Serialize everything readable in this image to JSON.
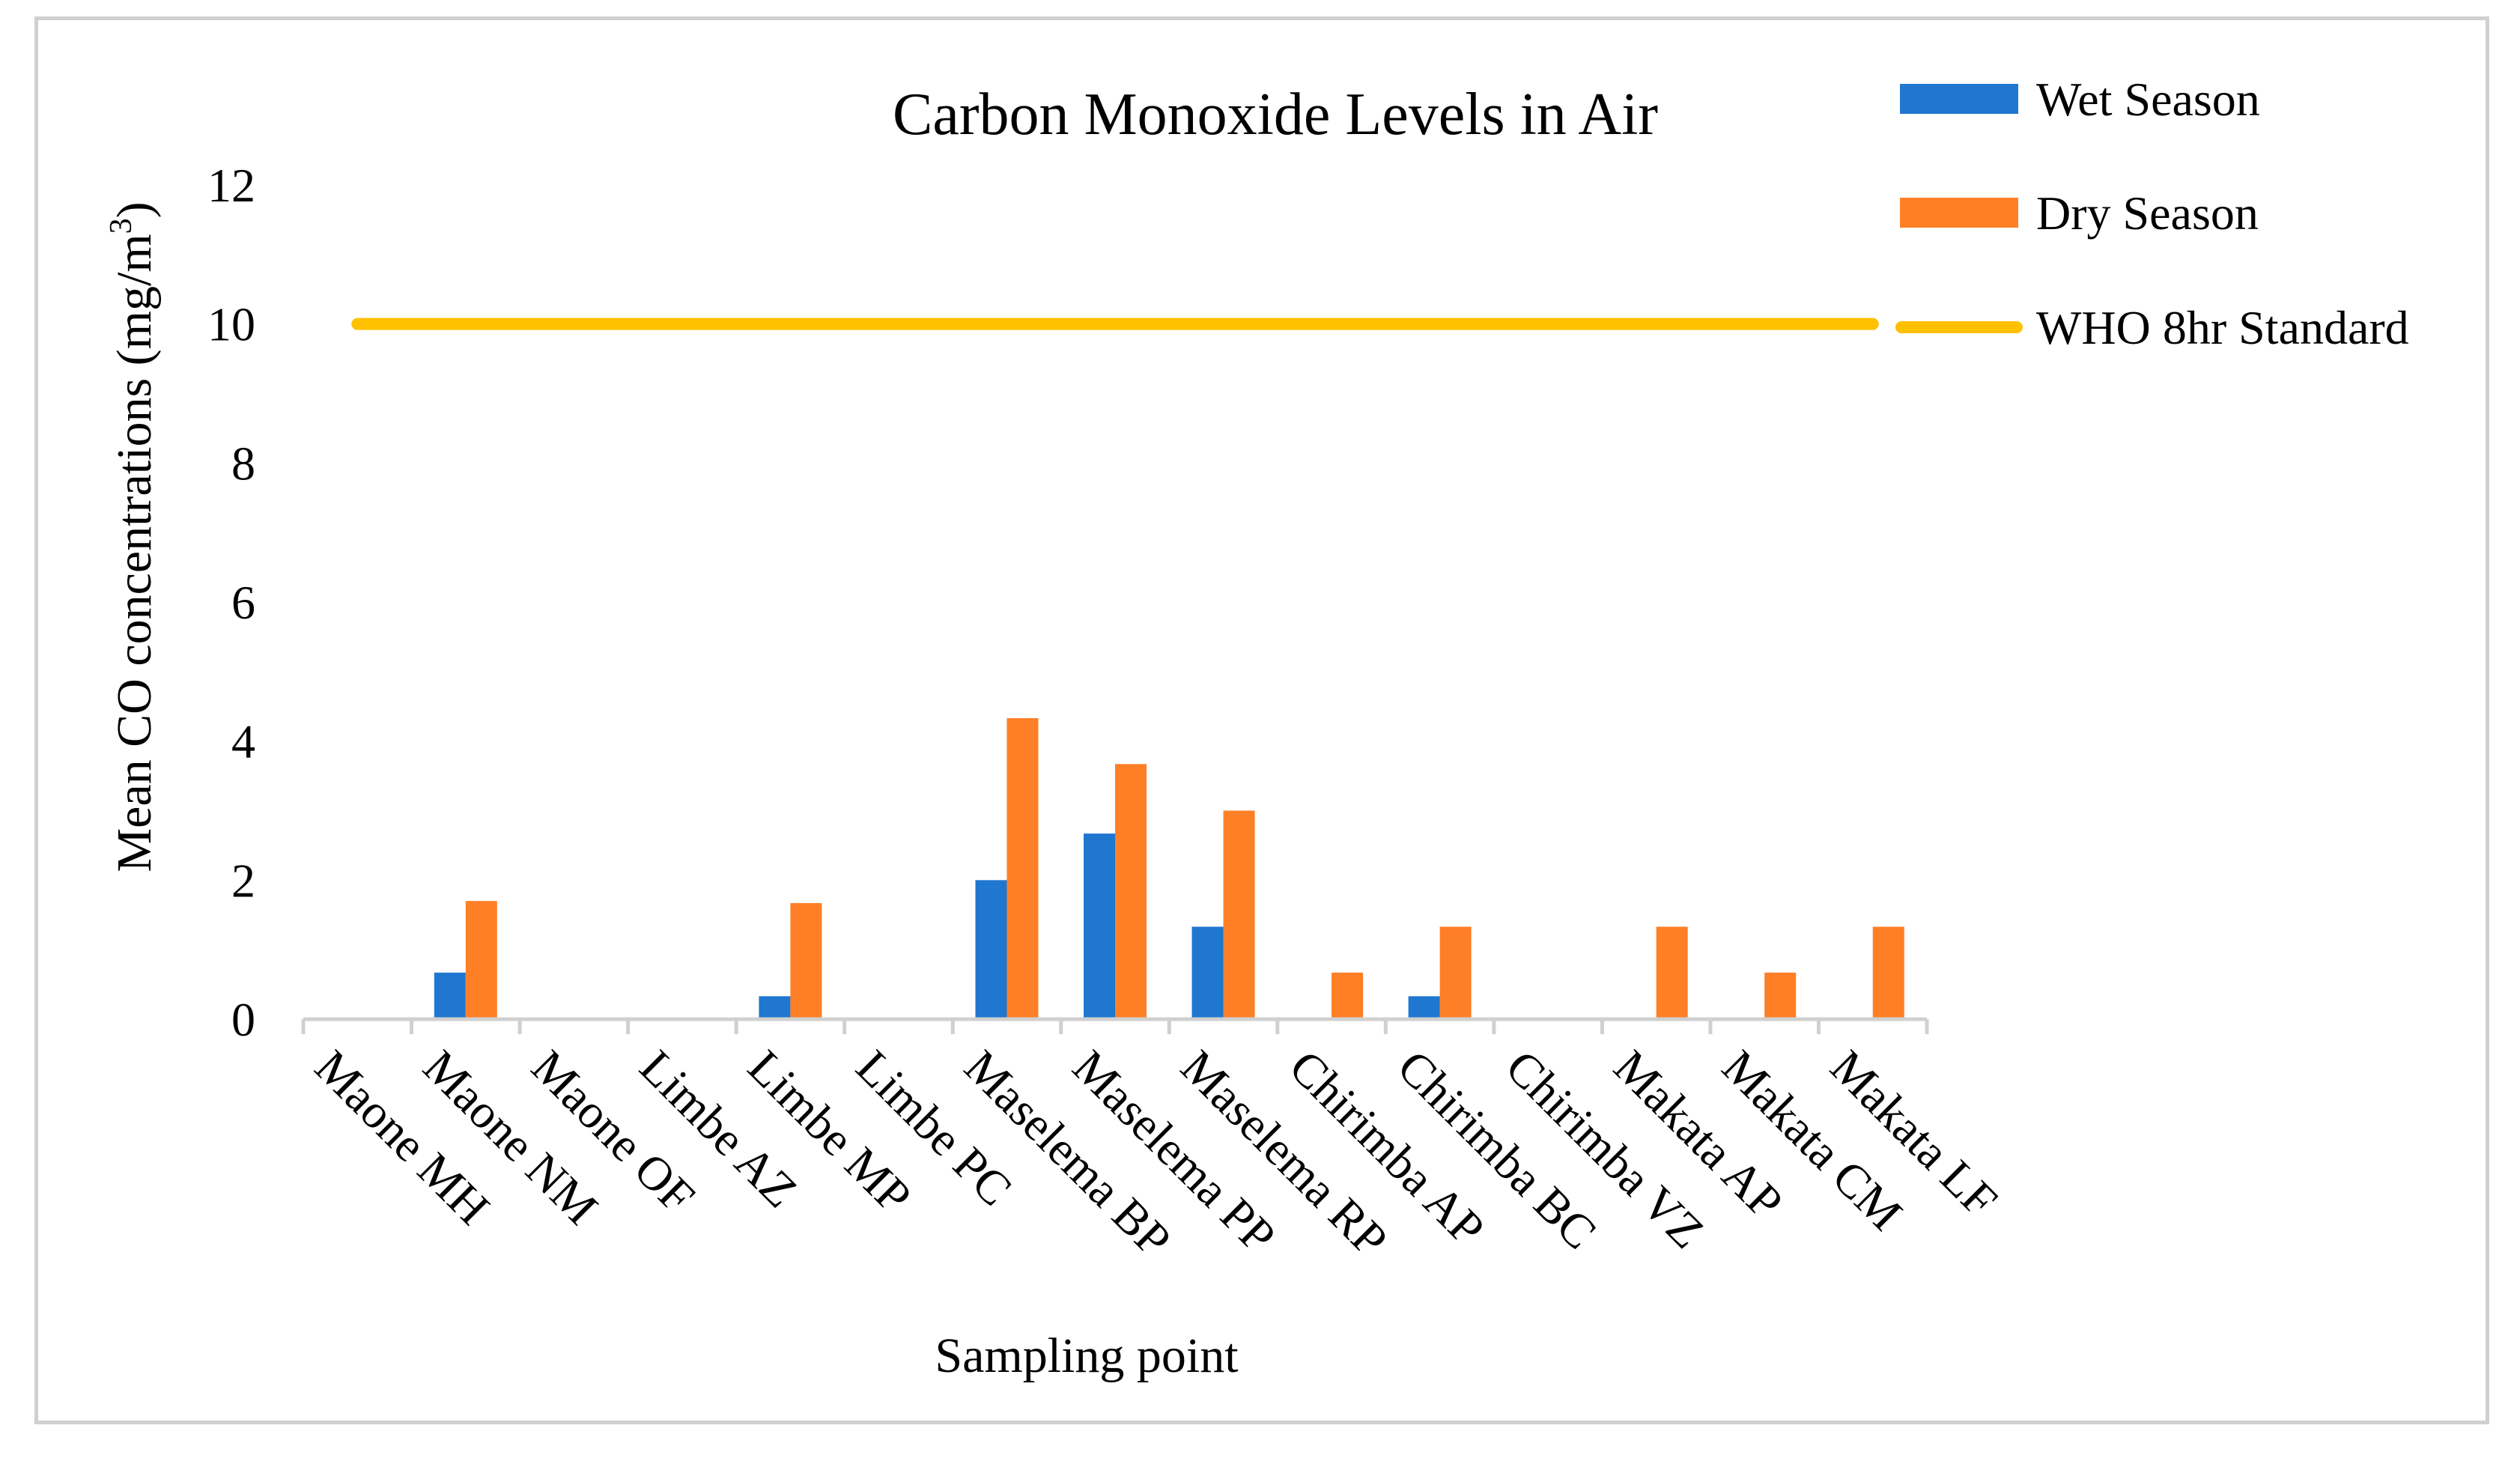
{
  "chart_data": {
    "type": "bar",
    "title": "Carbon Monoxide Levels in Air",
    "xlabel": "Sampling point",
    "ylabel": "Mean CO concentrations (mg/m",
    "ylabel_superscript": "3",
    "ylabel_suffix": ")",
    "ylim": [
      0,
      12
    ],
    "yticks": [
      "0",
      "2",
      "4",
      "6",
      "8",
      "10",
      "12"
    ],
    "categories": [
      "Maone MH",
      "Maone NM",
      "Maone OF",
      "Limbe AZ",
      "Limbe MP",
      "Limbe PC",
      "Maselema BP",
      "Maselema PP",
      "Maselema RP",
      "Chirimba AP",
      "Chirimba BC",
      "Chirimba VZ",
      "Makata AP",
      "Makata CM",
      "Makata LF"
    ],
    "series": [
      {
        "name": "Wet Season",
        "kind": "bar",
        "color": "#1f77d0",
        "values": [
          0,
          0.67,
          0,
          0,
          0.33,
          0,
          2.0,
          2.67,
          1.33,
          0,
          0.33,
          0,
          0,
          0,
          0
        ]
      },
      {
        "name": "Dry Season",
        "kind": "bar",
        "color": "#ff7f27",
        "values": [
          0,
          1.7,
          0,
          0,
          1.67,
          0,
          4.33,
          3.67,
          3.0,
          0.67,
          1.33,
          0,
          1.33,
          0.67,
          1.33
        ]
      },
      {
        "name": "WHO 8hr Standard",
        "kind": "line",
        "color": "#ffc000",
        "values": [
          10,
          10,
          10,
          10,
          10,
          10,
          10,
          10,
          10,
          10,
          10,
          10,
          10,
          10,
          10
        ]
      }
    ],
    "legend_position": "top-right",
    "grid": false
  }
}
